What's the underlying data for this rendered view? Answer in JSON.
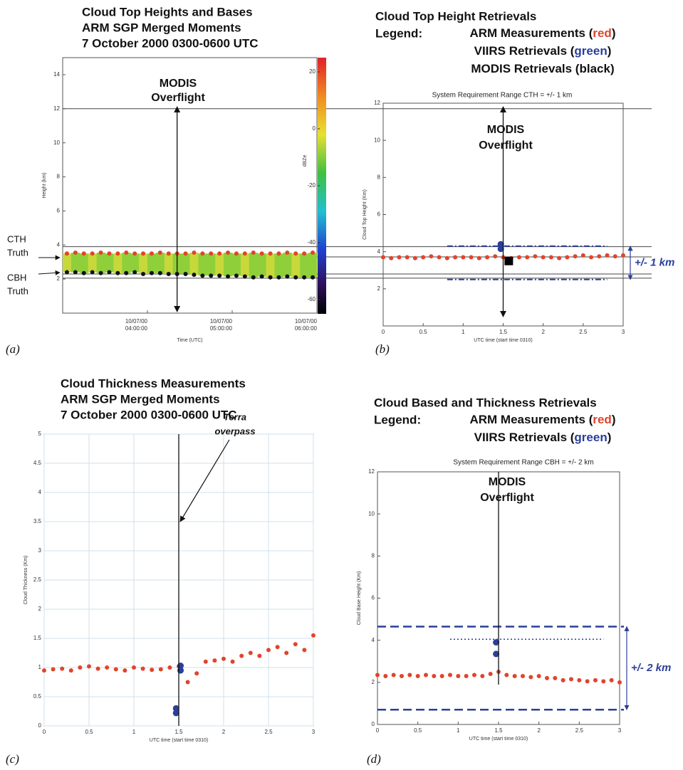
{
  "chart_data": [
    {
      "type": "scatter",
      "panel_label": "(a)",
      "title": [
        "Cloud Top Heights and Bases",
        "ARM SGP Merged Moments",
        "7 October 2000 0300-0600 UTC"
      ],
      "ylabel": "Height (km)",
      "xlabel": "Time (UTC)",
      "xlim": [
        3,
        6
      ],
      "xticks": [
        {
          "value": 4,
          "label": [
            "10/07/00",
            "04:00:00"
          ]
        },
        {
          "value": 5,
          "label": [
            "10/07/00",
            "05:00:00"
          ]
        },
        {
          "value": 6,
          "label": [
            "10/07/00",
            "06:00:00"
          ]
        }
      ],
      "ylim": [
        0,
        15
      ],
      "yticks": [
        2,
        4,
        6,
        8,
        10,
        12,
        14
      ],
      "grid": false,
      "series": [
        {
          "color": "#e0442c",
          "x": [
            3.05,
            3.15,
            3.25,
            3.35,
            3.45,
            3.55,
            3.65,
            3.75,
            3.85,
            3.95,
            4.05,
            4.15,
            4.25,
            4.35,
            4.45,
            4.55,
            4.65,
            4.75,
            4.85,
            4.95,
            5.05,
            5.15,
            5.25,
            5.35,
            5.45,
            5.55,
            5.65,
            5.75,
            5.85,
            5.95
          ],
          "values": [
            3.5,
            3.55,
            3.5,
            3.5,
            3.55,
            3.5,
            3.5,
            3.55,
            3.5,
            3.5,
            3.5,
            3.55,
            3.5,
            3.5,
            3.5,
            3.55,
            3.5,
            3.5,
            3.5,
            3.55,
            3.5,
            3.5,
            3.55,
            3.5,
            3.5,
            3.5,
            3.55,
            3.5,
            3.5,
            3.55
          ]
        },
        {
          "color": "#111111",
          "x": [
            3.05,
            3.15,
            3.25,
            3.35,
            3.45,
            3.55,
            3.65,
            3.75,
            3.85,
            3.95,
            4.05,
            4.15,
            4.25,
            4.35,
            4.45,
            4.55,
            4.65,
            4.75,
            4.85,
            4.95,
            5.05,
            5.15,
            5.25,
            5.35,
            5.45,
            5.55,
            5.65,
            5.75,
            5.85,
            5.95
          ],
          "values": [
            2.4,
            2.4,
            2.35,
            2.4,
            2.35,
            2.4,
            2.35,
            2.35,
            2.4,
            2.3,
            2.35,
            2.35,
            2.3,
            2.3,
            2.3,
            2.25,
            2.2,
            2.2,
            2.2,
            2.15,
            2.2,
            2.15,
            2.1,
            2.15,
            2.1,
            2.1,
            2.15,
            2.1,
            2.1,
            2.1
          ]
        }
      ],
      "hlines": [
        12,
        3.9,
        3.3,
        2.3,
        2.05
      ],
      "overflight": {
        "x": 4.35,
        "label": [
          "MODIS",
          "Overflight"
        ]
      },
      "annotations": [
        "CTH",
        "Truth",
        "CBH",
        "Truth"
      ],
      "colorbar": {
        "label": "dBZe",
        "lim": [
          -65,
          25
        ],
        "ticks": [
          20,
          0,
          -20,
          -40,
          -60
        ]
      }
    },
    {
      "type": "scatter",
      "panel_label": "(b)",
      "title": [
        "Cloud Top Height Retrievals"
      ],
      "legend_title": "Legend:",
      "legend": [
        {
          "before": "ARM Measurements (",
          "word": "red",
          "color": "#e0442c",
          "after": ")"
        },
        {
          "before": "VIIRS Retrievals (",
          "word": "green",
          "color": "#2a3f9a",
          "after": ")"
        },
        {
          "before": "MODIS Retrievals (",
          "word": "black",
          "color": "#111111",
          "after": ")"
        }
      ],
      "subtitle": "System Requirement Range CTH = +/- 1 km",
      "ylabel": "Cloud Top Height (Km)",
      "xlabel": "UTC time (start time 0310)",
      "xlim": [
        0,
        3
      ],
      "xticks": [
        0,
        0.5,
        1,
        1.5,
        2,
        2.5,
        3
      ],
      "ylim": [
        0,
        12
      ],
      "yticks": [
        2,
        4,
        6,
        8,
        10,
        12
      ],
      "grid": false,
      "series": [
        {
          "color": "#e0442c",
          "x": [
            0,
            0.1,
            0.2,
            0.3,
            0.4,
            0.5,
            0.6,
            0.7,
            0.8,
            0.9,
            1,
            1.1,
            1.2,
            1.3,
            1.4,
            1.5,
            1.6,
            1.7,
            1.8,
            1.9,
            2,
            2.1,
            2.2,
            2.3,
            2.4,
            2.5,
            2.6,
            2.7,
            2.8,
            2.9,
            3
          ],
          "values": [
            3.7,
            3.65,
            3.7,
            3.7,
            3.65,
            3.7,
            3.75,
            3.7,
            3.65,
            3.7,
            3.7,
            3.7,
            3.65,
            3.7,
            3.75,
            3.7,
            3.65,
            3.7,
            3.7,
            3.75,
            3.7,
            3.7,
            3.65,
            3.7,
            3.75,
            3.8,
            3.7,
            3.75,
            3.8,
            3.75,
            3.8
          ]
        },
        {
          "color": "#2a3f9a",
          "x": [
            1.47,
            1.47
          ],
          "values": [
            4.4,
            4.15
          ]
        },
        {
          "color": "#000000",
          "marker": "square",
          "x": [
            1.57
          ],
          "values": [
            3.5
          ]
        }
      ],
      "range_lines": [
        4.3,
        2.5
      ],
      "range_style": "dashdot",
      "range_x": [
        0.8,
        2.8
      ],
      "range_label": "+/- 1 km",
      "overflight": {
        "x": 1.5,
        "label": [
          "MODIS",
          "Overflight"
        ]
      }
    },
    {
      "type": "scatter",
      "panel_label": "(c)",
      "title": [
        "Cloud Thickness Measurements",
        "ARM SGP Merged Moments",
        "7 October 2000 0300-0600 UTC"
      ],
      "ylabel": "Cloud Thickness (Km)",
      "xlabel": "UTC time (start time 0310)",
      "xlim": [
        0,
        3
      ],
      "xticks": [
        0,
        0.5,
        1,
        1.5,
        2,
        2.5,
        3
      ],
      "ylim": [
        0,
        5
      ],
      "yticks": [
        0,
        0.5,
        1,
        1.5,
        2,
        2.5,
        3,
        3.5,
        4,
        4.5,
        5
      ],
      "grid": true,
      "series": [
        {
          "color": "#e0442c",
          "x": [
            0,
            0.1,
            0.2,
            0.3,
            0.4,
            0.5,
            0.6,
            0.7,
            0.8,
            0.9,
            1,
            1.1,
            1.2,
            1.3,
            1.4,
            1.5,
            1.6,
            1.7,
            1.8,
            1.9,
            2,
            2.1,
            2.2,
            2.3,
            2.4,
            2.5,
            2.6,
            2.7,
            2.8,
            2.9,
            3
          ],
          "values": [
            0.95,
            0.97,
            0.98,
            0.95,
            1.0,
            1.02,
            0.98,
            1.0,
            0.97,
            0.95,
            1.0,
            0.98,
            0.96,
            0.97,
            1.0,
            1.02,
            0.75,
            0.9,
            1.1,
            1.12,
            1.15,
            1.1,
            1.2,
            1.25,
            1.2,
            1.3,
            1.35,
            1.25,
            1.4,
            1.3,
            1.55
          ]
        },
        {
          "color": "#2a3f9a",
          "x": [
            1.47,
            1.47,
            1.52,
            1.52
          ],
          "values": [
            0.3,
            0.22,
            1.03,
            0.95
          ]
        }
      ],
      "overflight": {
        "x": 1.5,
        "label": [
          "Terra",
          "overpass"
        ]
      }
    },
    {
      "type": "scatter",
      "panel_label": "(d)",
      "title": [
        "Cloud Based and Thickness Retrievals"
      ],
      "legend_title": "Legend:",
      "legend": [
        {
          "before": "ARM Measurements (",
          "word": "red",
          "color": "#e0442c",
          "after": ")"
        },
        {
          "before": "VIIRS Retrievals (",
          "word": "green",
          "color": "#2a3f9a",
          "after": ")"
        }
      ],
      "subtitle": "System Requirement Range CBH = +/- 2 km",
      "ylabel": "Cloud Base Height (Km)",
      "xlabel": "UTC time (start time 0310)",
      "xlim": [
        0,
        3
      ],
      "xticks": [
        0,
        0.5,
        1,
        1.5,
        2,
        2.5,
        3
      ],
      "ylim": [
        0,
        12
      ],
      "yticks": [
        0,
        2,
        4,
        6,
        8,
        10,
        12
      ],
      "grid": false,
      "series": [
        {
          "color": "#e0442c",
          "x": [
            0,
            0.1,
            0.2,
            0.3,
            0.4,
            0.5,
            0.6,
            0.7,
            0.8,
            0.9,
            1,
            1.1,
            1.2,
            1.3,
            1.4,
            1.5,
            1.6,
            1.7,
            1.8,
            1.9,
            2,
            2.1,
            2.2,
            2.3,
            2.4,
            2.5,
            2.6,
            2.7,
            2.8,
            2.9,
            3
          ],
          "values": [
            2.35,
            2.3,
            2.35,
            2.3,
            2.35,
            2.3,
            2.35,
            2.3,
            2.3,
            2.35,
            2.3,
            2.3,
            2.35,
            2.3,
            2.4,
            2.5,
            2.35,
            2.3,
            2.3,
            2.25,
            2.3,
            2.2,
            2.2,
            2.1,
            2.15,
            2.1,
            2.05,
            2.1,
            2.05,
            2.1,
            2.0
          ]
        },
        {
          "color": "#2a3f9a",
          "x": [
            1.47,
            1.47
          ],
          "values": [
            3.9,
            3.35
          ]
        }
      ],
      "range_lines": [
        4.65,
        0.7
      ],
      "range_style": "dashed",
      "range_label": "+/- 2 km",
      "ref_line": {
        "y": 4.05,
        "x": [
          0.9,
          2.8
        ],
        "style": "dotted"
      },
      "overflight": {
        "x": 1.5,
        "label": [
          "MODIS",
          "Overflight"
        ]
      }
    }
  ]
}
